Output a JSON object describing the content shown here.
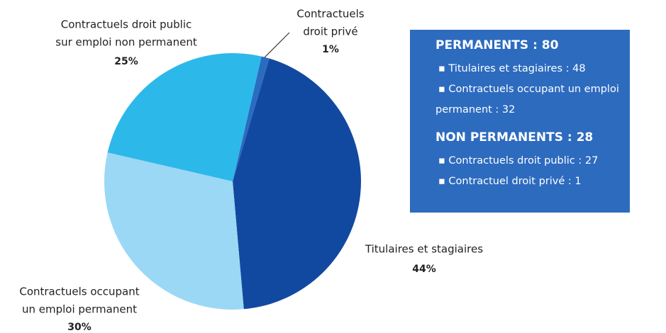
{
  "chart_data": {
    "type": "pie",
    "categories": [
      [
        "Contractuels",
        "droit privé"
      ],
      [
        "Titulaires et stagiaires"
      ],
      [
        "Contractuels occupant",
        "un emploi permanent"
      ],
      [
        "Contractuels droit public",
        "sur emploi non permanent"
      ]
    ],
    "values": [
      1,
      44,
      30,
      25
    ],
    "value_labels": [
      "1%",
      "44%",
      "30%",
      "25%"
    ],
    "colors": [
      "#2a6cc0",
      "#1249a0",
      "#9bd8f5",
      "#2db8ea"
    ]
  },
  "info_box": {
    "sections": [
      {
        "heading": "PERMANENTS : 80",
        "items": [
          [
            "▪ Titulaires et stagiaires : 48"
          ],
          [
            "▪ Contractuels occupant un emploi",
            "permanent : 32"
          ]
        ]
      },
      {
        "heading": "NON PERMANENTS : 28",
        "items": [
          [
            "▪ Contractuels droit public : 27"
          ],
          [
            "▪ Contractuel droit privé : 1"
          ]
        ]
      }
    ]
  }
}
